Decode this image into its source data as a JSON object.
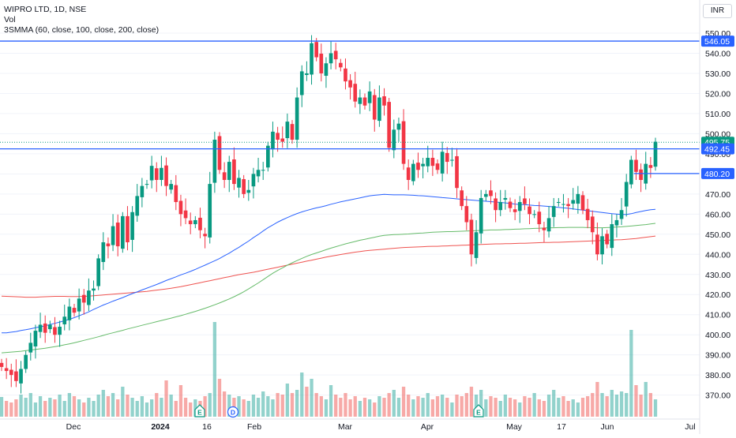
{
  "header": {
    "symbol_line": "WIPRO LTD, 1D, NSE",
    "vol_label": "Vol",
    "ma_label": "3SMMA (60, close, 100, close, 200, close)",
    "currency": "INR"
  },
  "chart_data": {
    "type": "candlestick",
    "ylim": [
      364,
      552
    ],
    "y_ticks": [
      "370.00",
      "380.00",
      "390.00",
      "400.00",
      "410.00",
      "420.00",
      "430.00",
      "440.00",
      "450.00",
      "460.00",
      "470.00",
      "480.00",
      "490.00",
      "500.00",
      "510.00",
      "520.00",
      "530.00",
      "540.00",
      "550.00"
    ],
    "x_ticks": [
      "Dec",
      "2024",
      "16",
      "Feb",
      "Mar",
      "Apr",
      "May",
      "17",
      "Jun",
      "Jul"
    ],
    "price_tags": [
      {
        "text": "546.05",
        "value": 546.05,
        "color": "#2962ff"
      },
      {
        "text": "495.75",
        "value": 495.75,
        "color": "#089981"
      },
      {
        "text": "492.45",
        "value": 492.45,
        "color": "#2962ff"
      },
      {
        "text": "480.20",
        "value": 480.2,
        "color": "#2962ff"
      }
    ],
    "horizontal_lines": [
      {
        "value": 546.05,
        "x_start": 0,
        "color": "#2962ff",
        "style": "solid"
      },
      {
        "value": 492.45,
        "x_start": 0,
        "color": "#2962ff",
        "style": "solid"
      },
      {
        "value": 480.2,
        "x_start": 0.906,
        "color": "#2962ff",
        "style": "solid"
      },
      {
        "value": 495.75,
        "x_start": 0,
        "color": "#089981",
        "style": "dotted"
      }
    ],
    "events": [
      {
        "label": "E",
        "date": "2024-01-12",
        "color": "#089981"
      },
      {
        "label": "D",
        "date": "2024-01-20",
        "color": "#2962ff"
      },
      {
        "label": "E",
        "date": "2024-04-19",
        "color": "#089981"
      }
    ],
    "closes": [
      384,
      382,
      380,
      377,
      383,
      390,
      396,
      402,
      405,
      401,
      405,
      400,
      404,
      409,
      414,
      411,
      418,
      416,
      422,
      423,
      438,
      446,
      444,
      454,
      444,
      459,
      446,
      461,
      469,
      474,
      475,
      484,
      477,
      483,
      474,
      475,
      466,
      460,
      458,
      455,
      457,
      452,
      449,
      475,
      497,
      482,
      477,
      486,
      475,
      478,
      470,
      472,
      480,
      482,
      482,
      494,
      501,
      497,
      496,
      506,
      497,
      518,
      531,
      530,
      545,
      538,
      530,
      535,
      540,
      537,
      533,
      526,
      523,
      516,
      518,
      514,
      521,
      507,
      518,
      514,
      493,
      502,
      505,
      485,
      477,
      485,
      482,
      485,
      488,
      484,
      482,
      491,
      486,
      487,
      473,
      464,
      456,
      440,
      451,
      468,
      470,
      469,
      462,
      466,
      468,
      463,
      461,
      466,
      465,
      460,
      460,
      455,
      452,
      458,
      464,
      466,
      465,
      464,
      467,
      470,
      462,
      457,
      451,
      440,
      449,
      445,
      455,
      457,
      462,
      476,
      487,
      481,
      477,
      485,
      483,
      496
    ],
    "ma60": [
      401,
      401,
      401.3,
      401.6,
      402.1,
      402.5,
      403.0,
      403.5,
      404.0,
      404.4,
      405.1,
      405.7,
      406.3,
      407.0,
      407.7,
      408.5,
      409.4,
      410.4,
      411.4,
      412.6,
      413.7,
      414.8,
      415.7,
      416.7,
      417.6,
      418.5,
      419.5,
      420.5,
      421.3,
      422.3,
      423.2,
      424.1,
      425.0,
      426.0,
      427.0,
      427.9,
      428.8,
      429.8,
      430.6,
      431.5,
      432.5,
      433.6,
      434.6,
      435.7,
      436.8,
      437.9,
      439.3,
      440.6,
      442.1,
      443.5,
      445.1,
      446.6,
      448.3,
      449.9,
      451.6,
      453.2,
      454.6,
      456.0,
      457.2,
      458.3,
      459.3,
      460.3,
      461.1,
      461.8,
      462.5,
      463.1,
      463.6,
      464.2,
      464.9,
      465.5,
      466.1,
      466.6,
      467.1,
      467.6,
      468.1,
      468.6,
      469.1,
      469.4,
      469.6,
      469.8,
      469.7,
      469.6,
      469.6,
      469.6,
      469.5,
      469.4,
      469.2,
      469.1,
      468.9,
      468.7,
      468.5,
      468.2,
      468.0,
      467.8,
      467.6,
      467.4,
      467.2,
      467.0,
      466.8,
      466.6,
      466.4,
      466.2,
      466.0,
      465.8,
      465.6,
      465.3,
      465.0,
      464.8,
      464.7,
      464.5,
      464.3,
      464.2,
      464.0,
      463.8,
      463.6,
      463.4,
      463.1,
      462.9,
      462.6,
      462.3,
      462.0,
      461.7,
      461.4,
      461.1,
      460.8,
      460.5,
      460.2,
      460.0,
      459.8,
      459.8,
      460.2,
      460.8,
      461.3,
      461.8,
      462.2,
      462.4
    ],
    "ma100": [
      391.0,
      391.2,
      391.4,
      391.6,
      391.8,
      392.1,
      392.4,
      392.7,
      393.0,
      393.3,
      393.7,
      394.1,
      394.5,
      395.0,
      395.5,
      396.0,
      396.6,
      397.2,
      397.8,
      398.4,
      399.0,
      399.7,
      400.4,
      401.0,
      401.6,
      402.2,
      402.9,
      403.5,
      404.1,
      404.7,
      405.3,
      405.9,
      406.5,
      407.1,
      407.7,
      408.3,
      408.9,
      409.5,
      410.2,
      410.9,
      411.6,
      412.4,
      413.2,
      414.0,
      414.9,
      415.8,
      416.8,
      417.8,
      418.9,
      420.1,
      421.4,
      422.8,
      424.3,
      425.8,
      427.4,
      429.0,
      430.6,
      432.0,
      433.3,
      434.6,
      435.8,
      436.9,
      438.0,
      439.0,
      439.9,
      440.7,
      441.5,
      442.3,
      443.1,
      443.8,
      444.5,
      445.2,
      445.8,
      446.4,
      447.0,
      447.5,
      448.0,
      448.5,
      449.0,
      449.4,
      449.6,
      449.8,
      449.9,
      450.0,
      450.1,
      450.3,
      450.5,
      450.6,
      450.8,
      451.0,
      451.1,
      451.2,
      451.3,
      451.3,
      451.4,
      451.5,
      451.6,
      451.7,
      451.8,
      451.9,
      452.0,
      452.1,
      452.1,
      452.2,
      452.3,
      452.4,
      452.5,
      452.6,
      452.7,
      452.8,
      452.9,
      453.0,
      453.1,
      453.2,
      453.2,
      453.3,
      453.3,
      453.4,
      453.4,
      453.4,
      453.4,
      453.3,
      453.3,
      453.2,
      453.2,
      453.3,
      453.4,
      453.6,
      453.7,
      453.9,
      454.1,
      454.3,
      454.6,
      454.8,
      455.1,
      455.4
    ],
    "ma200": [
      419.2,
      419.1,
      419.0,
      418.9,
      418.8,
      418.7,
      418.7,
      418.7,
      418.8,
      418.9,
      419.0,
      419.1,
      419.1,
      419.1,
      419.0,
      419.0,
      419.0,
      419.1,
      419.2,
      419.4,
      419.6,
      419.8,
      420.0,
      420.2,
      420.4,
      420.6,
      420.8,
      421.0,
      421.2,
      421.4,
      421.6,
      421.9,
      422.2,
      422.5,
      422.8,
      423.1,
      423.5,
      423.9,
      424.4,
      424.9,
      425.4,
      425.9,
      426.4,
      426.9,
      427.4,
      427.9,
      428.4,
      428.9,
      429.4,
      429.9,
      430.3,
      430.7,
      431.1,
      431.6,
      432.1,
      432.6,
      433.1,
      433.6,
      434.1,
      434.6,
      435.1,
      435.6,
      436.1,
      436.6,
      437.1,
      437.6,
      438.1,
      438.6,
      439.1,
      439.5,
      439.9,
      440.3,
      440.7,
      441.1,
      441.4,
      441.7,
      442.0,
      442.2,
      442.4,
      442.6,
      442.8,
      443.0,
      443.2,
      443.4,
      443.5,
      443.6,
      443.7,
      443.8,
      443.9,
      444.0,
      444.0,
      444.1,
      444.2,
      444.3,
      444.4,
      444.5,
      444.6,
      444.7,
      444.8,
      444.9,
      445.0,
      445.1,
      445.2,
      445.2,
      445.3,
      445.3,
      445.4,
      445.5,
      445.5,
      445.6,
      445.7,
      445.8,
      445.9,
      445.9,
      446.0,
      446.0,
      446.1,
      446.2,
      446.3,
      446.4,
      446.5,
      446.6,
      446.7,
      446.8,
      446.9,
      447.0,
      447.1,
      447.2,
      447.3,
      447.5,
      447.7,
      447.9,
      448.2,
      448.5,
      448.8,
      449.1
    ],
    "volumes": [
      25,
      20,
      18,
      22,
      28,
      24,
      30,
      18,
      26,
      20,
      24,
      22,
      28,
      20,
      30,
      26,
      22,
      18,
      24,
      20,
      28,
      34,
      26,
      30,
      22,
      38,
      28,
      24,
      20,
      26,
      18,
      22,
      30,
      24,
      46,
      28,
      20,
      40,
      24,
      18,
      22,
      20,
      26,
      30,
      120,
      48,
      32,
      28,
      24,
      26,
      22,
      20,
      28,
      24,
      32,
      26,
      22,
      30,
      28,
      42,
      30,
      34,
      56,
      38,
      48,
      30,
      26,
      22,
      40,
      28,
      24,
      30,
      22,
      26,
      20,
      24,
      22,
      18,
      26,
      24,
      30,
      34,
      24,
      38,
      28,
      22,
      26,
      24,
      30,
      22,
      26,
      28,
      24,
      18,
      28,
      26,
      30,
      38,
      28,
      34,
      22,
      26,
      24,
      20,
      28,
      24,
      22,
      18,
      26,
      24,
      30,
      22,
      20,
      28,
      34,
      24,
      26,
      20,
      22,
      18,
      24,
      26,
      30,
      44,
      30,
      26,
      34,
      28,
      32,
      30,
      110,
      40,
      28,
      44,
      30,
      22
    ]
  }
}
